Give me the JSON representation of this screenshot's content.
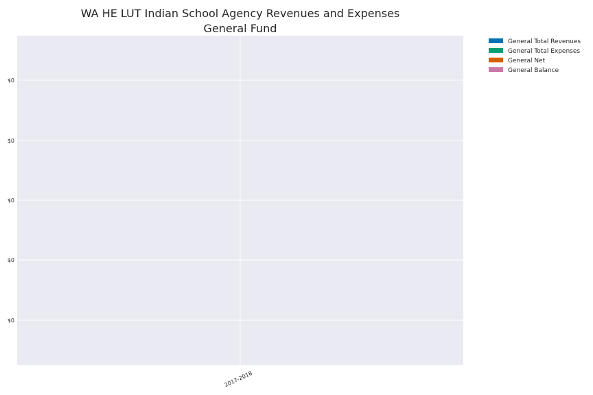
{
  "chart_data": {
    "type": "bar",
    "title_line1": "WA HE LUT Indian School Agency Revenues and Expenses",
    "title_line2": "General Fund",
    "xlabel": "",
    "ylabel": "",
    "categories": [
      "2017-2018"
    ],
    "y_tick_labels": [
      "$0",
      "$0",
      "$0",
      "$0",
      "$0"
    ],
    "series": [
      {
        "name": "General Total Revenues",
        "color": "#0072b2",
        "values": [
          0
        ]
      },
      {
        "name": "General Total Expenses",
        "color": "#009e73",
        "values": [
          0
        ]
      },
      {
        "name": "General Net",
        "color": "#d55e00",
        "values": [
          0
        ]
      },
      {
        "name": "General Balance",
        "color": "#cc79a7",
        "values": [
          0
        ]
      }
    ],
    "grid": true,
    "legend_position": "outside-top-right",
    "plot_background": "#eaeaf2",
    "grid_color": "#ffffff"
  }
}
